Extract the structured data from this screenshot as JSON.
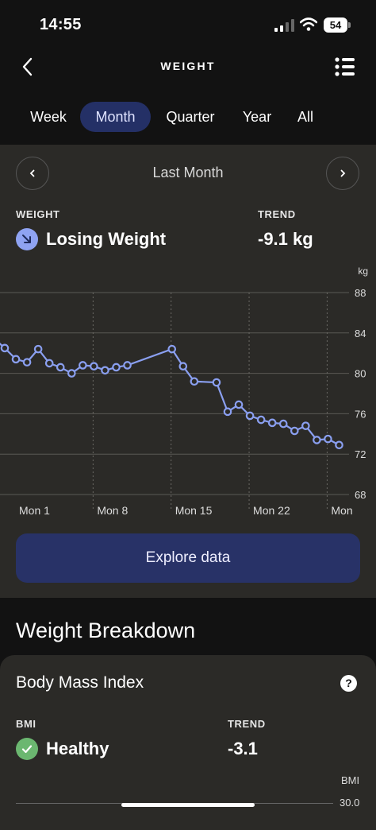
{
  "status_bar": {
    "time": "14:55",
    "battery": "54"
  },
  "header": {
    "title": "WEIGHT",
    "back_icon": "chevron-left-icon",
    "menu_icon": "list-icon"
  },
  "tabs": [
    {
      "label": "Week",
      "active": false
    },
    {
      "label": "Month",
      "active": true
    },
    {
      "label": "Quarter",
      "active": false
    },
    {
      "label": "Year",
      "active": false
    },
    {
      "label": "All",
      "active": false
    }
  ],
  "period": {
    "label": "Last Month"
  },
  "summary": {
    "weight_label": "WEIGHT",
    "weight_status": "Losing Weight",
    "trend_label": "TREND",
    "trend_value": "-9.1 kg"
  },
  "chart_data": {
    "type": "line",
    "unit": "kg",
    "ylim": [
      68,
      88
    ],
    "yticks": [
      "88",
      "84",
      "80",
      "76",
      "72",
      "68"
    ],
    "xlabels": [
      "Mon 1",
      "Mon 8",
      "Mon 15",
      "Mon 22",
      "Mon"
    ],
    "x": [
      0,
      1,
      2,
      3,
      4,
      5,
      6,
      7,
      8,
      9,
      10,
      11,
      15,
      16,
      17,
      19,
      20,
      21,
      22,
      23,
      24,
      25,
      26,
      27,
      28,
      29,
      30
    ],
    "values": [
      82.5,
      81.4,
      81.1,
      82.4,
      81.0,
      80.6,
      80.0,
      80.8,
      80.7,
      80.3,
      80.6,
      80.8,
      82.4,
      80.7,
      79.2,
      79.1,
      76.2,
      76.9,
      75.8,
      75.4,
      75.1,
      75.0,
      74.3,
      74.8,
      73.4,
      73.5,
      72.9
    ],
    "line_color": "#8a9ff0",
    "grid": true
  },
  "explore_button": {
    "label": "Explore data"
  },
  "breakdown": {
    "title": "Weight Breakdown",
    "card_title": "Body Mass Index",
    "help_icon": "question-icon",
    "bmi_label": "BMI",
    "bmi_status": "Healthy",
    "trend_label": "TREND",
    "trend_value": "-3.1",
    "axis_unit": "BMI",
    "axis_top": "30.0"
  }
}
